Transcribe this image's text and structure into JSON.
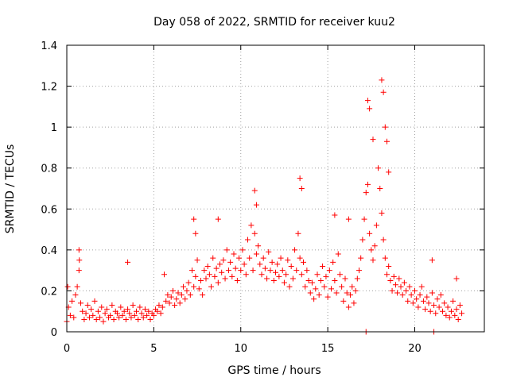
{
  "chart_data": {
    "type": "scatter",
    "title": "Day 058 of 2022, SRMTID for receiver kuu2",
    "xlabel": "GPS time / hours",
    "ylabel": "SRMTID / TECUs",
    "xlim": [
      0,
      24
    ],
    "ylim": [
      0,
      1.4
    ],
    "xticks": [
      0,
      5,
      10,
      15,
      20
    ],
    "yticks": [
      0,
      0.2,
      0.4,
      0.6,
      0.8,
      1,
      1.2,
      1.4
    ],
    "xtick_labels": [
      "0",
      "5",
      "10",
      "15",
      "20"
    ],
    "ytick_labels": [
      "0",
      "0.2",
      "0.4",
      "0.6",
      "0.8",
      "1",
      "1.2",
      "1.4"
    ],
    "grid": true,
    "marker": "+",
    "color": "#ff0000",
    "series": [
      {
        "name": "SRMTID",
        "x": [
          0.0,
          0.1,
          0.2,
          0.3,
          0.4,
          0.5,
          0.6,
          0.7,
          0.8,
          0.9,
          1.0,
          1.1,
          1.2,
          1.3,
          1.4,
          1.5,
          1.6,
          1.7,
          1.8,
          1.9,
          2.0,
          2.1,
          2.2,
          2.3,
          2.4,
          2.5,
          2.6,
          2.7,
          2.8,
          2.9,
          3.0,
          3.1,
          3.2,
          3.3,
          3.4,
          3.5,
          3.6,
          3.7,
          3.8,
          3.9,
          4.0,
          4.1,
          4.2,
          4.3,
          4.4,
          4.5,
          4.6,
          4.7,
          4.8,
          4.9,
          5.0,
          5.1,
          5.2,
          5.3,
          5.4,
          5.5,
          5.6,
          5.7,
          5.8,
          5.9,
          6.0,
          6.1,
          6.2,
          6.3,
          6.4,
          6.5,
          6.6,
          6.7,
          6.8,
          6.9,
          7.0,
          7.1,
          7.2,
          7.3,
          7.4,
          7.5,
          7.6,
          7.7,
          7.8,
          7.9,
          8.0,
          8.1,
          8.2,
          8.3,
          8.4,
          8.5,
          8.6,
          8.7,
          8.8,
          8.9,
          9.0,
          9.1,
          9.2,
          9.3,
          9.4,
          9.5,
          9.6,
          9.7,
          9.8,
          9.9,
          10.0,
          10.1,
          10.2,
          10.3,
          10.4,
          10.5,
          10.6,
          10.7,
          10.8,
          10.9,
          11.0,
          11.1,
          11.2,
          11.3,
          11.4,
          11.5,
          11.6,
          11.7,
          11.8,
          11.9,
          12.0,
          12.1,
          12.2,
          12.3,
          12.4,
          12.5,
          12.6,
          12.7,
          12.8,
          12.9,
          13.0,
          13.1,
          13.2,
          13.3,
          13.4,
          13.5,
          13.6,
          13.7,
          13.8,
          13.9,
          14.0,
          14.1,
          14.2,
          14.3,
          14.4,
          14.5,
          14.6,
          14.7,
          14.8,
          14.9,
          15.0,
          15.1,
          15.2,
          15.3,
          15.4,
          15.5,
          15.6,
          15.7,
          15.8,
          15.9,
          16.0,
          16.1,
          16.2,
          16.3,
          16.4,
          16.5,
          16.6,
          16.7,
          16.8,
          16.9,
          17.0,
          17.1,
          17.2,
          17.3,
          17.4,
          17.5,
          17.6,
          17.7,
          17.8,
          17.9,
          18.0,
          18.1,
          18.2,
          18.3,
          18.4,
          18.5,
          18.6,
          18.7,
          18.8,
          18.9,
          19.0,
          19.1,
          19.2,
          19.3,
          19.4,
          19.5,
          19.6,
          19.7,
          19.8,
          19.9,
          20.0,
          20.1,
          20.2,
          20.3,
          20.4,
          20.5,
          20.6,
          20.7,
          20.8,
          20.9,
          21.0,
          21.1,
          21.2,
          21.3,
          21.4,
          21.5,
          21.6,
          21.7,
          21.8,
          21.9,
          22.0,
          22.1,
          22.2,
          22.3,
          22.4,
          22.5,
          22.6,
          22.7,
          0.05,
          0.7,
          0.72,
          3.5,
          7.3,
          7.4,
          8.7,
          10.8,
          10.9,
          13.4,
          13.5,
          15.4,
          16.2,
          17.2,
          17.3,
          17.4,
          17.6,
          18.1,
          18.2,
          18.3,
          18.4,
          18.5,
          21.0,
          21.1,
          22.4
        ],
        "y": [
          0.05,
          0.12,
          0.08,
          0.15,
          0.07,
          0.18,
          0.22,
          0.3,
          0.14,
          0.1,
          0.06,
          0.09,
          0.13,
          0.07,
          0.11,
          0.08,
          0.15,
          0.06,
          0.1,
          0.07,
          0.12,
          0.05,
          0.09,
          0.11,
          0.07,
          0.08,
          0.13,
          0.06,
          0.1,
          0.09,
          0.07,
          0.12,
          0.08,
          0.1,
          0.06,
          0.11,
          0.09,
          0.07,
          0.13,
          0.08,
          0.1,
          0.06,
          0.12,
          0.09,
          0.07,
          0.11,
          0.08,
          0.1,
          0.06,
          0.09,
          0.08,
          0.11,
          0.1,
          0.13,
          0.09,
          0.12,
          0.28,
          0.15,
          0.18,
          0.14,
          0.17,
          0.2,
          0.13,
          0.16,
          0.19,
          0.14,
          0.18,
          0.22,
          0.16,
          0.2,
          0.24,
          0.18,
          0.3,
          0.22,
          0.27,
          0.35,
          0.21,
          0.25,
          0.18,
          0.3,
          0.26,
          0.32,
          0.28,
          0.22,
          0.36,
          0.27,
          0.31,
          0.24,
          0.33,
          0.29,
          0.35,
          0.26,
          0.4,
          0.3,
          0.34,
          0.27,
          0.38,
          0.31,
          0.25,
          0.36,
          0.3,
          0.4,
          0.33,
          0.28,
          0.45,
          0.36,
          0.52,
          0.3,
          0.48,
          0.38,
          0.42,
          0.33,
          0.28,
          0.36,
          0.31,
          0.26,
          0.39,
          0.3,
          0.34,
          0.25,
          0.29,
          0.33,
          0.27,
          0.36,
          0.3,
          0.24,
          0.28,
          0.35,
          0.22,
          0.32,
          0.26,
          0.4,
          0.3,
          0.48,
          0.36,
          0.28,
          0.34,
          0.22,
          0.3,
          0.25,
          0.19,
          0.24,
          0.16,
          0.21,
          0.28,
          0.18,
          0.25,
          0.32,
          0.22,
          0.27,
          0.17,
          0.3,
          0.21,
          0.34,
          0.25,
          0.19,
          0.38,
          0.28,
          0.22,
          0.15,
          0.26,
          0.19,
          0.12,
          0.18,
          0.22,
          0.14,
          0.2,
          0.26,
          0.3,
          0.36,
          0.45,
          0.55,
          0.68,
          0.72,
          0.48,
          0.4,
          0.35,
          0.42,
          0.52,
          0.8,
          0.7,
          0.58,
          0.45,
          0.36,
          0.28,
          0.32,
          0.25,
          0.2,
          0.27,
          0.23,
          0.19,
          0.26,
          0.22,
          0.18,
          0.24,
          0.2,
          0.15,
          0.22,
          0.18,
          0.14,
          0.2,
          0.16,
          0.12,
          0.18,
          0.22,
          0.15,
          0.11,
          0.17,
          0.14,
          0.1,
          0.19,
          0.13,
          0.09,
          0.16,
          0.12,
          0.18,
          0.1,
          0.14,
          0.08,
          0.12,
          0.07,
          0.1,
          0.15,
          0.08,
          0.11,
          0.06,
          0.13,
          0.09,
          0.22,
          0.4,
          0.35,
          0.34,
          0.55,
          0.48,
          0.55,
          0.69,
          0.62,
          0.75,
          0.7,
          0.57,
          0.55,
          0.0,
          1.13,
          1.09,
          0.94,
          1.23,
          1.17,
          1.0,
          0.93,
          0.78,
          0.35,
          0.0,
          0.26
        ]
      }
    ]
  }
}
